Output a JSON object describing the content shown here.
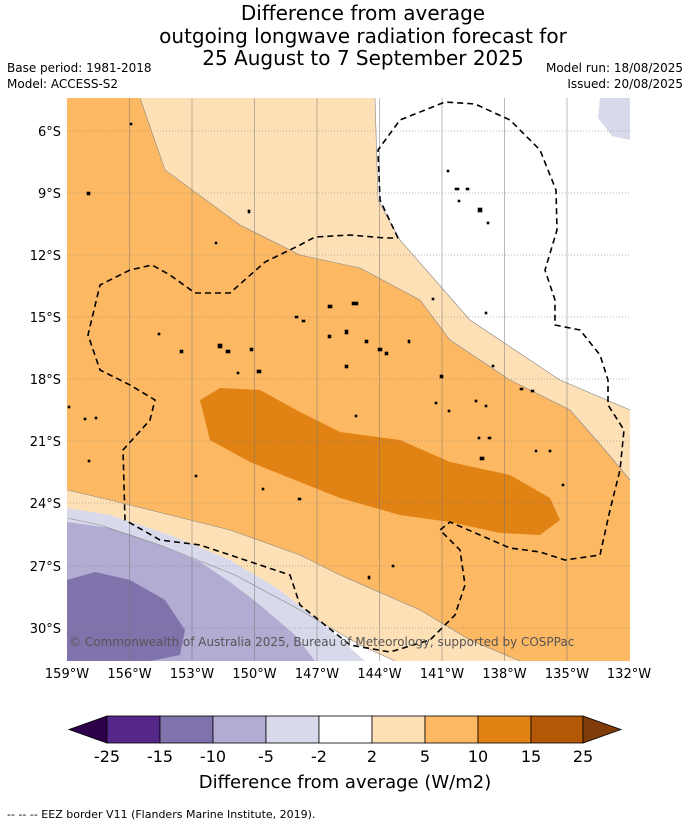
{
  "title": {
    "line1": "Difference from average",
    "line2": "outgoing longwave radiation forecast for",
    "line3": "25 August to 7 September 2025"
  },
  "meta": {
    "base_period": "Base period: 1981-2018",
    "model": "Model: ACCESS-S2",
    "model_run": "Model run: 18/08/2025",
    "issued": "Issued: 20/08/2025"
  },
  "map": {
    "lat_labels": [
      "6°S",
      "9°S",
      "12°S",
      "15°S",
      "18°S",
      "21°S",
      "24°S",
      "27°S",
      "30°S"
    ],
    "lon_labels": [
      "159°W",
      "156°W",
      "153°W",
      "150°W",
      "147°W",
      "144°W",
      "141°W",
      "138°W",
      "135°W",
      "132°W"
    ],
    "copyright": "© Commonwealth of Australia 2025, Bureau of Meteorology, supported by COSPPac"
  },
  "colorbar": {
    "labels": [
      "-25",
      "-15",
      "-10",
      "-5",
      "-2",
      "2",
      "5",
      "10",
      "15",
      "25"
    ],
    "title": "Difference from average (W/m2)",
    "colors": {
      "under": "#2d004b",
      "lt_m15": "#542788",
      "m15_m10": "#8073ac",
      "m10_m5": "#b2abd2",
      "m5_m2": "#d8daeb",
      "m2_p2": "#ffffff",
      "p2_p5": "#fee0b6",
      "p5_p10": "#fdb863",
      "p10_p15": "#e08214",
      "p15_p25": "#b35806",
      "over": "#7f3b08"
    }
  },
  "footer": {
    "eez_legend": "--  --  -- EEZ border V11 (Flanders Marine Institute, 2019)."
  }
}
